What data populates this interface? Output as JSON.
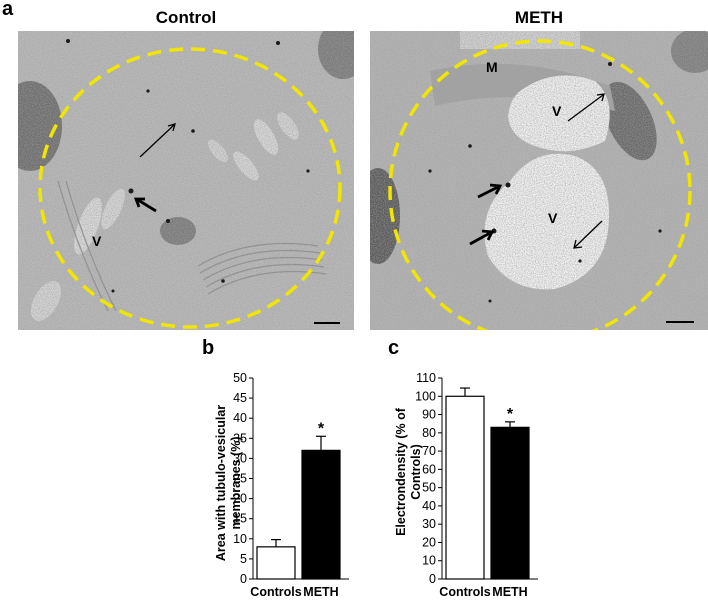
{
  "panels": {
    "a": {
      "letter": "a",
      "images": [
        {
          "title": "Control",
          "labels": [
            "V"
          ]
        },
        {
          "title": "METH",
          "labels": [
            "M",
            "V",
            "V"
          ]
        }
      ]
    },
    "b": {
      "letter": "b"
    },
    "c": {
      "letter": "c"
    }
  },
  "colors": {
    "dashed_circle": "#f2e600",
    "control_bar": "#ffffff",
    "meth_bar": "#000000",
    "micrograph_base": "#b9b9b9"
  },
  "chart_data": [
    {
      "type": "bar",
      "categories": [
        "Controls",
        "METH"
      ],
      "values": [
        8,
        32
      ],
      "errors": [
        1.8,
        3.5
      ],
      "ylabel": "Area with tubulo-vesicular membranes (%)",
      "ylim": [
        0,
        50
      ],
      "yticks": [
        "0",
        "5",
        "10",
        "15",
        "20",
        "25",
        "30",
        "35",
        "40",
        "45",
        "50"
      ],
      "significance": [
        "",
        "*"
      ]
    },
    {
      "type": "bar",
      "categories": [
        "Controls",
        "METH"
      ],
      "values": [
        100,
        83
      ],
      "errors": [
        4.5,
        3
      ],
      "ylabel": "Electrondensity (% of Controls)",
      "ylim": [
        0,
        110
      ],
      "yticks": [
        "0",
        "10",
        "20",
        "30",
        "40",
        "50",
        "60",
        "70",
        "80",
        "90",
        "100",
        "110"
      ],
      "significance": [
        "",
        "*"
      ]
    }
  ]
}
